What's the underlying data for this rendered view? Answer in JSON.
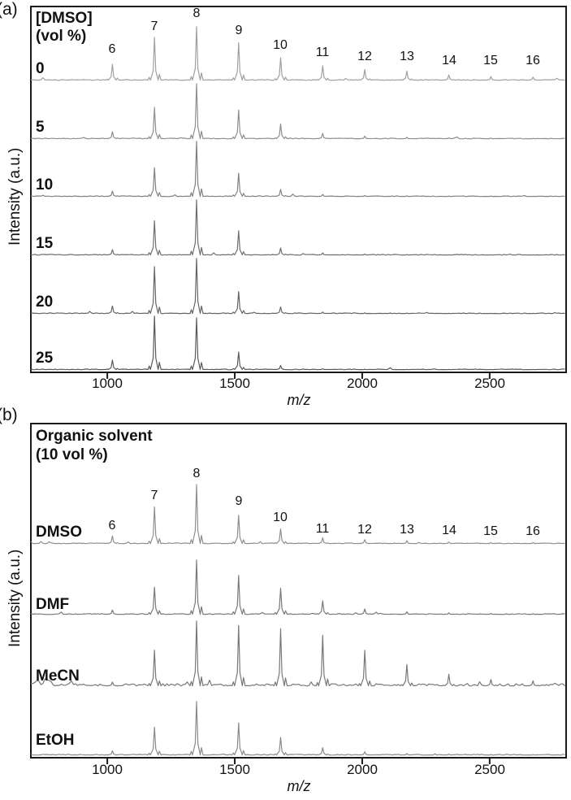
{
  "figure": {
    "panel_a": {
      "tag": "(a)",
      "title_line1": "[DMSO]",
      "title_line2": "(vol %)"
    },
    "panel_b": {
      "tag": "(b)",
      "title_line1": "Organic solvent",
      "title_line2": "(10 vol %)"
    }
  },
  "chart_data": [
    {
      "type": "line",
      "panel": "a",
      "title": "[DMSO] (vol %)",
      "xlabel": "m/z",
      "ylabel": "Intensity (a.u.)",
      "xlim": [
        700,
        2800
      ],
      "ylim": [
        0,
        1
      ],
      "units": "a.u. (normalized per spectrum)",
      "layout_hint": "stacked mass spectra, top to bottom",
      "xticks": [
        "1000",
        "1500",
        "2000",
        "2500"
      ],
      "peak_labels": [
        "6",
        "7",
        "8",
        "9",
        "10",
        "11",
        "12",
        "13",
        "14",
        "15",
        "16"
      ],
      "peak_mz": [
        1020,
        1185,
        1350,
        1515,
        1680,
        1845,
        2010,
        2175,
        2340,
        2505,
        2670
      ],
      "series": [
        {
          "name": "0",
          "color": "#a0a0a0",
          "noise": 0.9,
          "intensities": [
            0.3,
            0.8,
            1.0,
            0.7,
            0.42,
            0.27,
            0.2,
            0.17,
            0.1,
            0.07,
            0.06
          ]
        },
        {
          "name": "5",
          "color": "#8f8f8f",
          "noise": 0.9,
          "intensities": [
            0.13,
            0.57,
            1.0,
            0.52,
            0.27,
            0.1,
            0.05,
            0.03,
            0.02,
            0.015,
            0.01
          ]
        },
        {
          "name": "10",
          "color": "#828282",
          "noise": 0.9,
          "intensities": [
            0.1,
            0.52,
            1.0,
            0.42,
            0.13,
            0.04,
            0.02,
            0.015,
            0.01,
            0.01,
            0.005
          ]
        },
        {
          "name": "15",
          "color": "#6f6f6f",
          "noise": 0.9,
          "intensities": [
            0.1,
            0.62,
            1.0,
            0.44,
            0.13,
            0.04,
            0.02,
            0.01,
            0.005,
            0.005,
            0.005
          ]
        },
        {
          "name": "20",
          "color": "#656565",
          "noise": 0.9,
          "intensities": [
            0.14,
            0.85,
            1.0,
            0.4,
            0.12,
            0.03,
            0.015,
            0.01,
            0.005,
            0,
            0
          ]
        },
        {
          "name": "25",
          "color": "#5a5a5a",
          "noise": 0.9,
          "intensities": [
            0.18,
            1.0,
            0.97,
            0.33,
            0.08,
            0.02,
            0.01,
            0.005,
            0,
            0,
            0
          ]
        }
      ]
    },
    {
      "type": "line",
      "panel": "b",
      "title": "Organic solvent (10 vol %)",
      "xlabel": "m/z",
      "ylabel": "Intensity (a.u.)",
      "xlim": [
        700,
        2800
      ],
      "ylim": [
        0,
        1
      ],
      "units": "a.u. (normalized per spectrum)",
      "layout_hint": "stacked mass spectra, top to bottom",
      "xticks": [
        "1000",
        "1500",
        "2000",
        "2500"
      ],
      "peak_labels": [
        "6",
        "7",
        "8",
        "9",
        "10",
        "11",
        "12",
        "13",
        "14",
        "15",
        "16"
      ],
      "peak_mz": [
        1020,
        1185,
        1350,
        1515,
        1680,
        1845,
        2010,
        2175,
        2340,
        2505,
        2670
      ],
      "series": [
        {
          "name": "DMSO",
          "color": "#8f8f8f",
          "noise": 0.9,
          "intensities": [
            0.13,
            0.62,
            1.0,
            0.48,
            0.25,
            0.1,
            0.07,
            0.05,
            0.03,
            0.02,
            0.02
          ]
        },
        {
          "name": "DMF",
          "color": "#7a7a7a",
          "noise": 1.0,
          "intensities": [
            0.08,
            0.5,
            1.0,
            0.72,
            0.48,
            0.25,
            0.1,
            0.05,
            0.03,
            0.02,
            0.015
          ]
        },
        {
          "name": "MeCN",
          "color": "#787878",
          "noise": 2.8,
          "intensities": [
            0.06,
            0.55,
            1.0,
            0.93,
            0.88,
            0.78,
            0.55,
            0.33,
            0.18,
            0.1,
            0.08
          ]
        },
        {
          "name": "EtOH",
          "color": "#8a8a8a",
          "noise": 1.0,
          "intensities": [
            0.08,
            0.52,
            1.0,
            0.6,
            0.33,
            0.14,
            0.06,
            0.03,
            0.02,
            0.01,
            0.01
          ]
        }
      ]
    }
  ]
}
